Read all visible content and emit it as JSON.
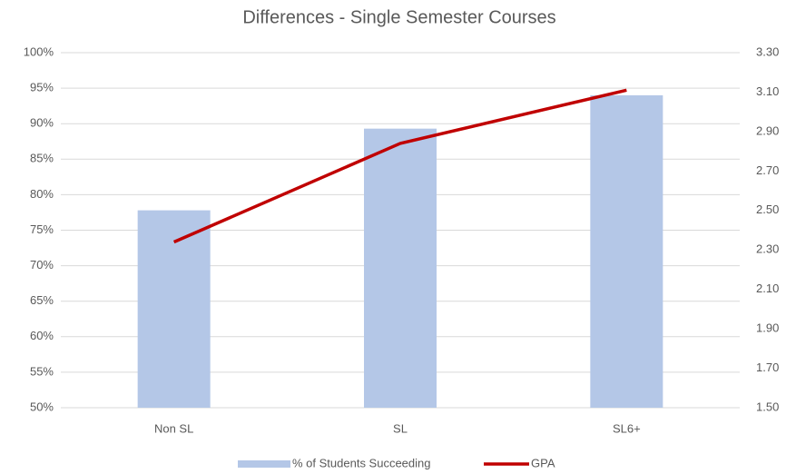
{
  "chart_data": {
    "type": "bar",
    "title": "Differences - Single Semester Courses",
    "categories": [
      "Non SL",
      "SL",
      "SL6+"
    ],
    "series": [
      {
        "name": "% of Students Succeeding",
        "type": "bar",
        "color": "#b4c7e7",
        "values": [
          77.8,
          89.3,
          94
        ]
      },
      {
        "name": "GPA",
        "type": "line",
        "axis": "y2",
        "color": "#c00000",
        "values": [
          2.34,
          2.84,
          3.11
        ]
      }
    ],
    "ylim": [
      50,
      100
    ],
    "yticks": [
      {
        "value": 50,
        "label": "50%"
      },
      {
        "value": 55,
        "label": "55%"
      },
      {
        "value": 60,
        "label": "60%"
      },
      {
        "value": 65,
        "label": "65%"
      },
      {
        "value": 70,
        "label": "70%"
      },
      {
        "value": 75,
        "label": "75%"
      },
      {
        "value": 80,
        "label": "80%"
      },
      {
        "value": 85,
        "label": "85%"
      },
      {
        "value": 90,
        "label": "90%"
      },
      {
        "value": 95,
        "label": "95%"
      },
      {
        "value": 100,
        "label": "100%"
      }
    ],
    "y2lim": [
      1.5,
      3.3
    ],
    "y2ticks": [
      {
        "value": 1.5,
        "label": "1.50"
      },
      {
        "value": 1.7,
        "label": "1.70"
      },
      {
        "value": 1.9,
        "label": "1.90"
      },
      {
        "value": 2.1,
        "label": "2.10"
      },
      {
        "value": 2.3,
        "label": "2.30"
      },
      {
        "value": 2.5,
        "label": "2.50"
      },
      {
        "value": 2.7,
        "label": "2.70"
      },
      {
        "value": 2.9,
        "label": "2.90"
      },
      {
        "value": 3.1,
        "label": "3.10"
      },
      {
        "value": 3.3,
        "label": "3.30"
      }
    ],
    "grid": true,
    "legend": "bottom"
  }
}
